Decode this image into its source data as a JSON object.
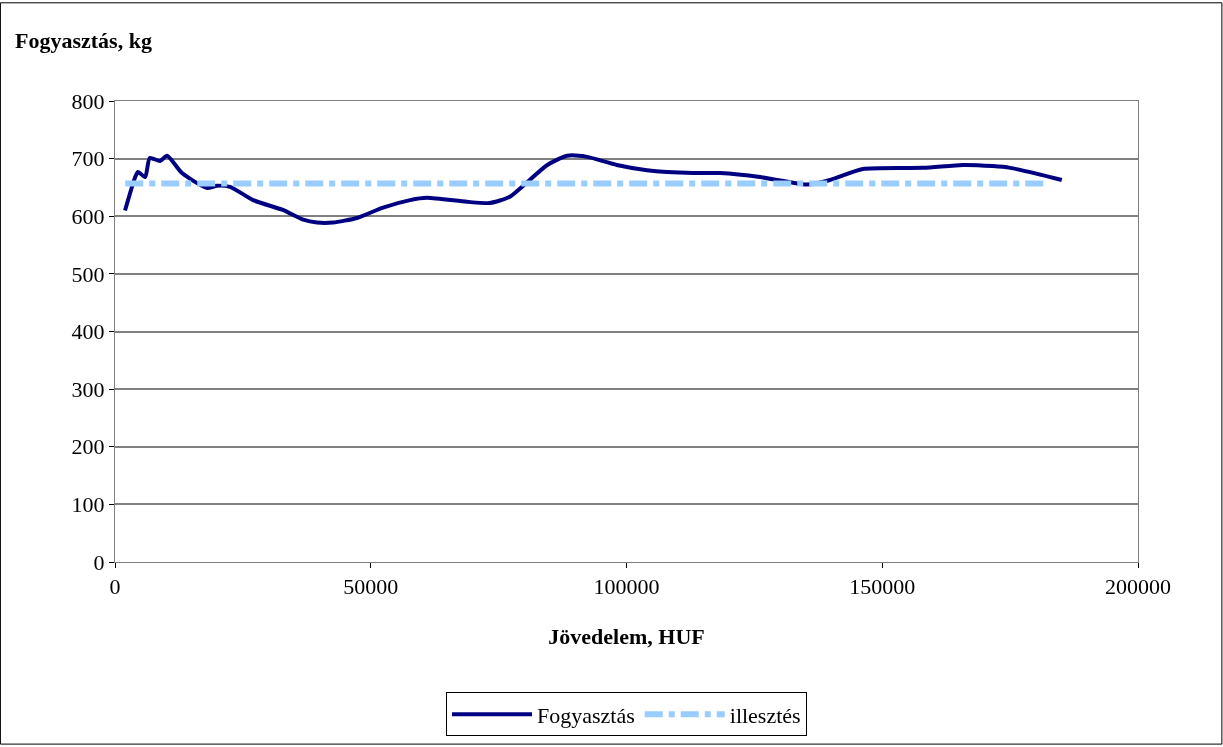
{
  "chart_data": {
    "type": "line",
    "ylabel": "Fogyasztás, kg",
    "xlabel": "Jövedelem, HUF",
    "series": [
      {
        "name": "Fogyasztás",
        "color": "#000080",
        "line_style": "solid",
        "x": [
          1955,
          3900,
          4500,
          5900,
          6800,
          8800,
          10200,
          13100,
          18000,
          19900,
          22500,
          27000,
          32800,
          36800,
          39500,
          42600,
          47300,
          52400,
          57700,
          61000,
          68800,
          73300,
          77200,
          84500,
          88400,
          92300,
          98100,
          104000,
          113000,
          118300,
          126100,
          132600,
          135300,
          139800,
          146200,
          158000,
          165800,
          171600,
          175000,
          185100
        ],
        "values": [
          610,
          667,
          677,
          668,
          701,
          696,
          705,
          675,
          649,
          653,
          651,
          628,
          611,
          594,
          589,
          589,
          597,
          615,
          628,
          632,
          625,
          623,
          634,
          689,
          705,
          703,
          689,
          680,
          675,
          675,
          668,
          658,
          655,
          663,
          682,
          684,
          689,
          687,
          684,
          663
        ]
      },
      {
        "name": "illesztés",
        "color": "#99ccff",
        "line_style": "dashdot",
        "x": [
          2000,
          182500
        ],
        "values": [
          657,
          657
        ]
      }
    ],
    "xlim": [
      0,
      200000
    ],
    "xticks": [
      0,
      50000,
      100000,
      150000,
      200000
    ],
    "ylim": [
      0,
      800
    ],
    "yticks": [
      0,
      100,
      200,
      300,
      400,
      500,
      600,
      700,
      800
    ],
    "grid": "y",
    "legend": "bottom",
    "marker": "none"
  }
}
